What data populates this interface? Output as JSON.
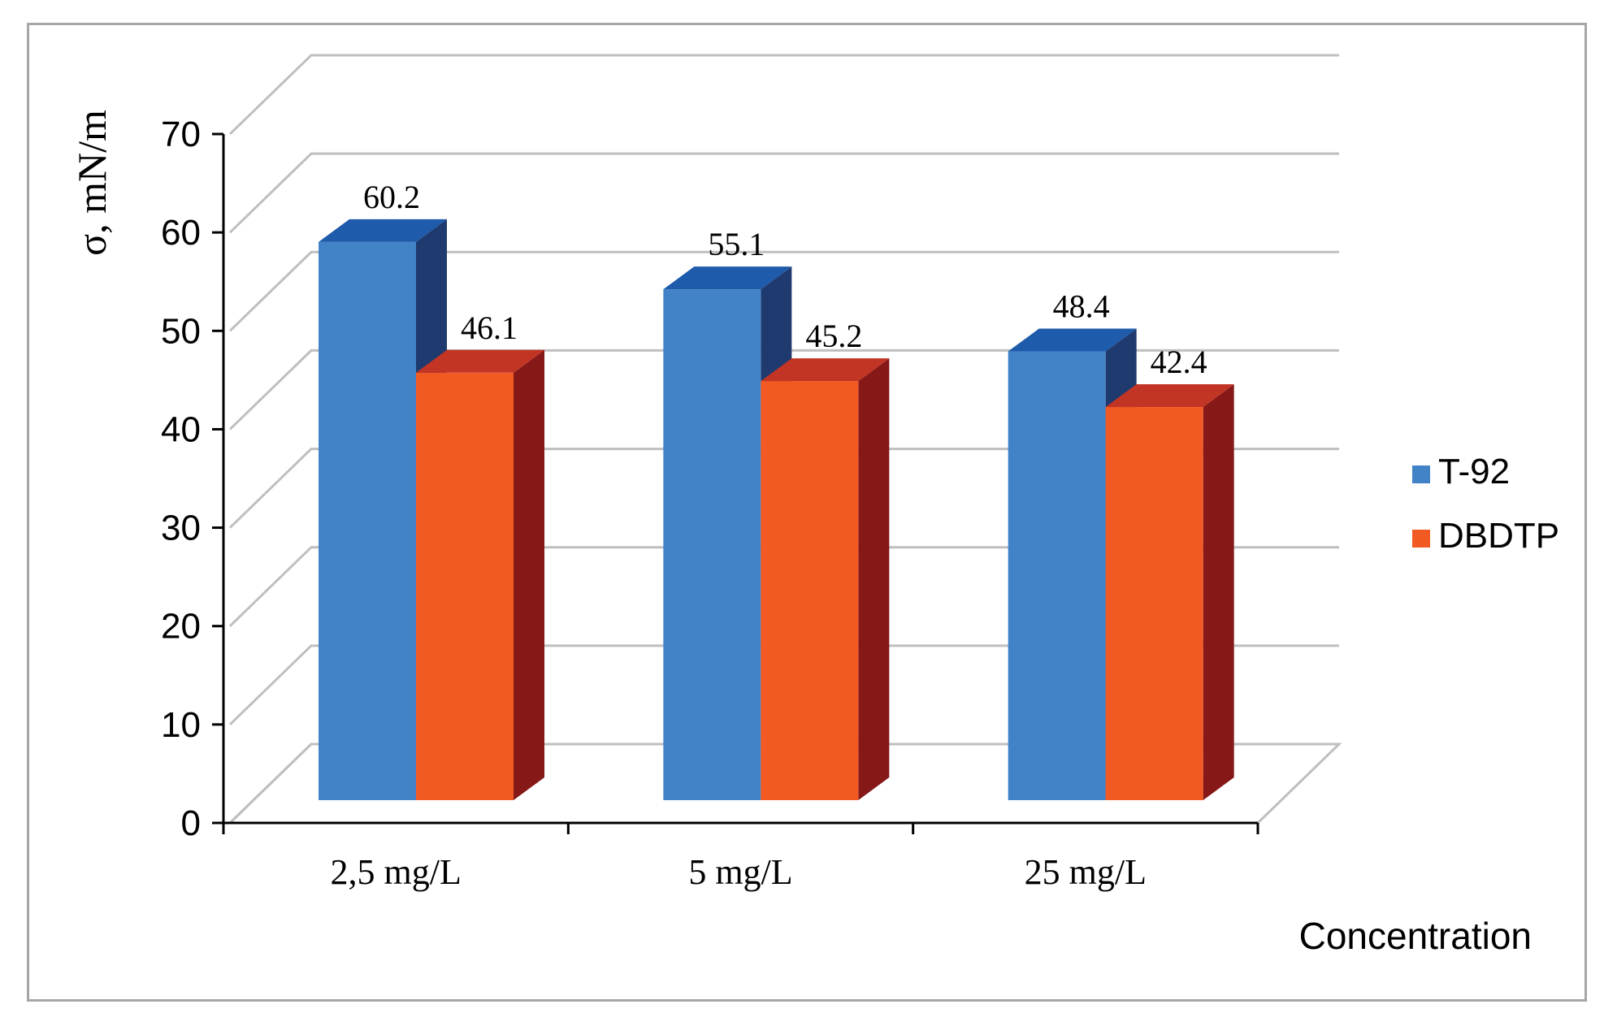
{
  "chart_data": {
    "type": "bar",
    "style": "3d-clustered-column",
    "title": "",
    "ylabel": "σ, mN/m",
    "xlabel": "Concentration",
    "categories": [
      "2,5 mg/L",
      "5 mg/L",
      "25 mg/L"
    ],
    "ylim": [
      0,
      70
    ],
    "yticks": [
      0,
      10,
      20,
      30,
      40,
      50,
      60,
      70
    ],
    "grid": true,
    "legend_position": "right",
    "series": [
      {
        "name": "T-92",
        "values": [
          60.2,
          55.1,
          48.4
        ],
        "labels": [
          "60.2",
          "55.1",
          "48.4"
        ],
        "color": "#4283c8",
        "top_color": "#1f5bab",
        "side_color": "#1f3a6e"
      },
      {
        "name": "DBDTP",
        "values": [
          46.1,
          45.2,
          42.4
        ],
        "labels": [
          "46.1",
          "45.2",
          "42.4"
        ],
        "color": "#f15a22",
        "top_color": "#c23424",
        "side_color": "#861818"
      }
    ]
  }
}
